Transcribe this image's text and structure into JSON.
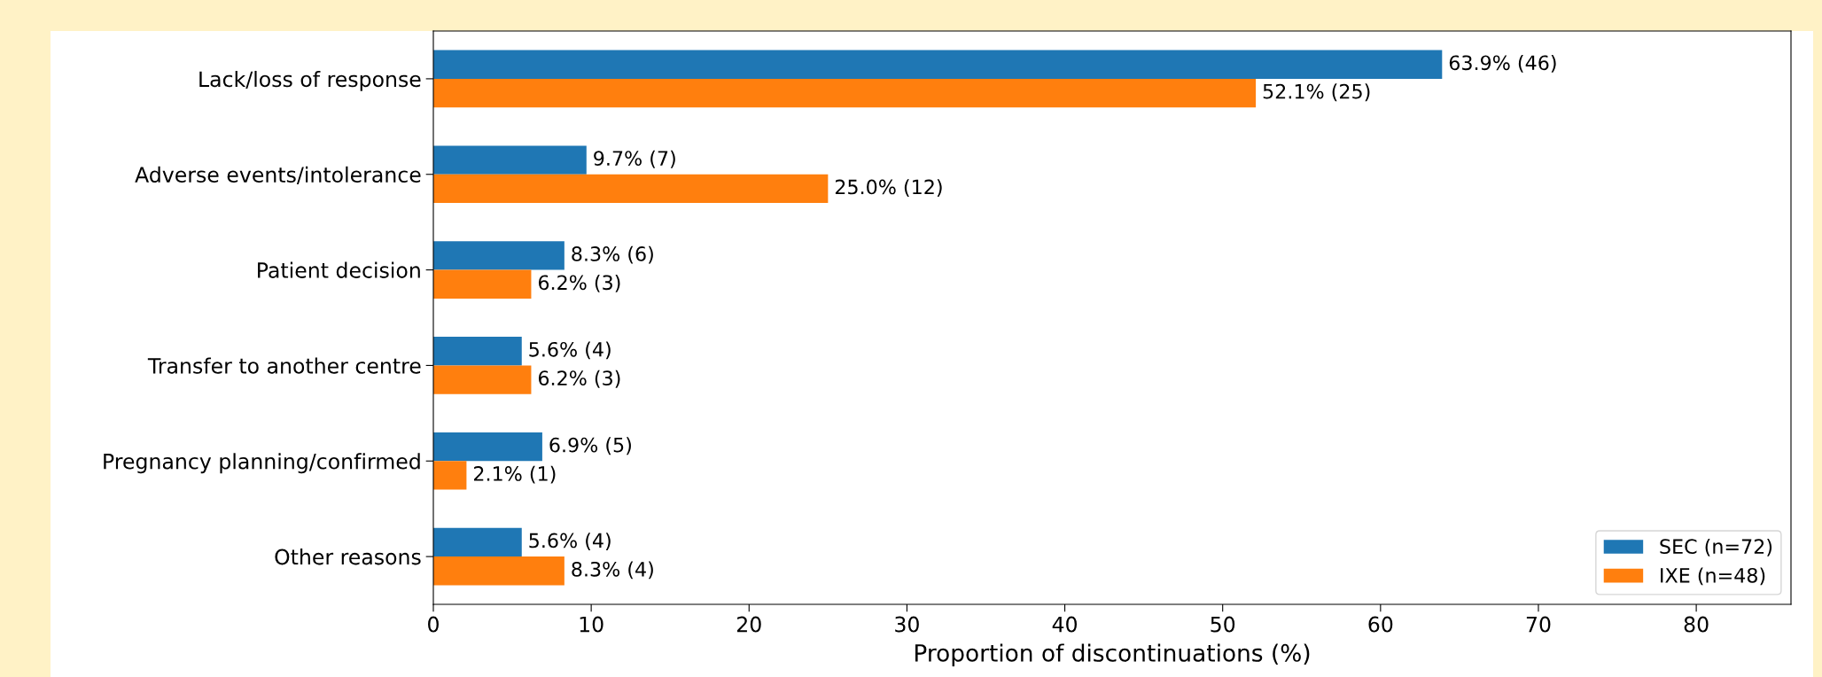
{
  "chart_data": {
    "type": "bar",
    "orientation": "horizontal",
    "xlabel": "Proportion of discontinuations (%)",
    "categories": [
      "Lack/loss of response",
      "Adverse events/intolerance",
      "Patient decision",
      "Transfer to another centre",
      "Pregnancy planning/confirmed",
      "Other reasons"
    ],
    "series": [
      {
        "name": "SEC (n=72)",
        "color": "#1f77b4",
        "values": [
          63.9,
          9.7,
          8.3,
          5.6,
          6.9,
          5.6
        ],
        "value_labels": [
          "63.9% (46)",
          "9.7% (7)",
          "8.3% (6)",
          "5.6% (4)",
          "6.9% (5)",
          "5.6% (4)"
        ]
      },
      {
        "name": "IXE (n=48)",
        "color": "#ff7f0e",
        "values": [
          52.1,
          25.0,
          6.2,
          6.2,
          2.1,
          8.3
        ],
        "value_labels": [
          "52.1% (25)",
          "25.0% (12)",
          "6.2% (3)",
          "6.2% (3)",
          "2.1% (1)",
          "8.3% (4)"
        ]
      }
    ],
    "xlim": [
      0,
      86
    ],
    "xticks": [
      0,
      10,
      20,
      30,
      40,
      50,
      60,
      70,
      80
    ],
    "grid": false,
    "legend": "bottom right"
  }
}
